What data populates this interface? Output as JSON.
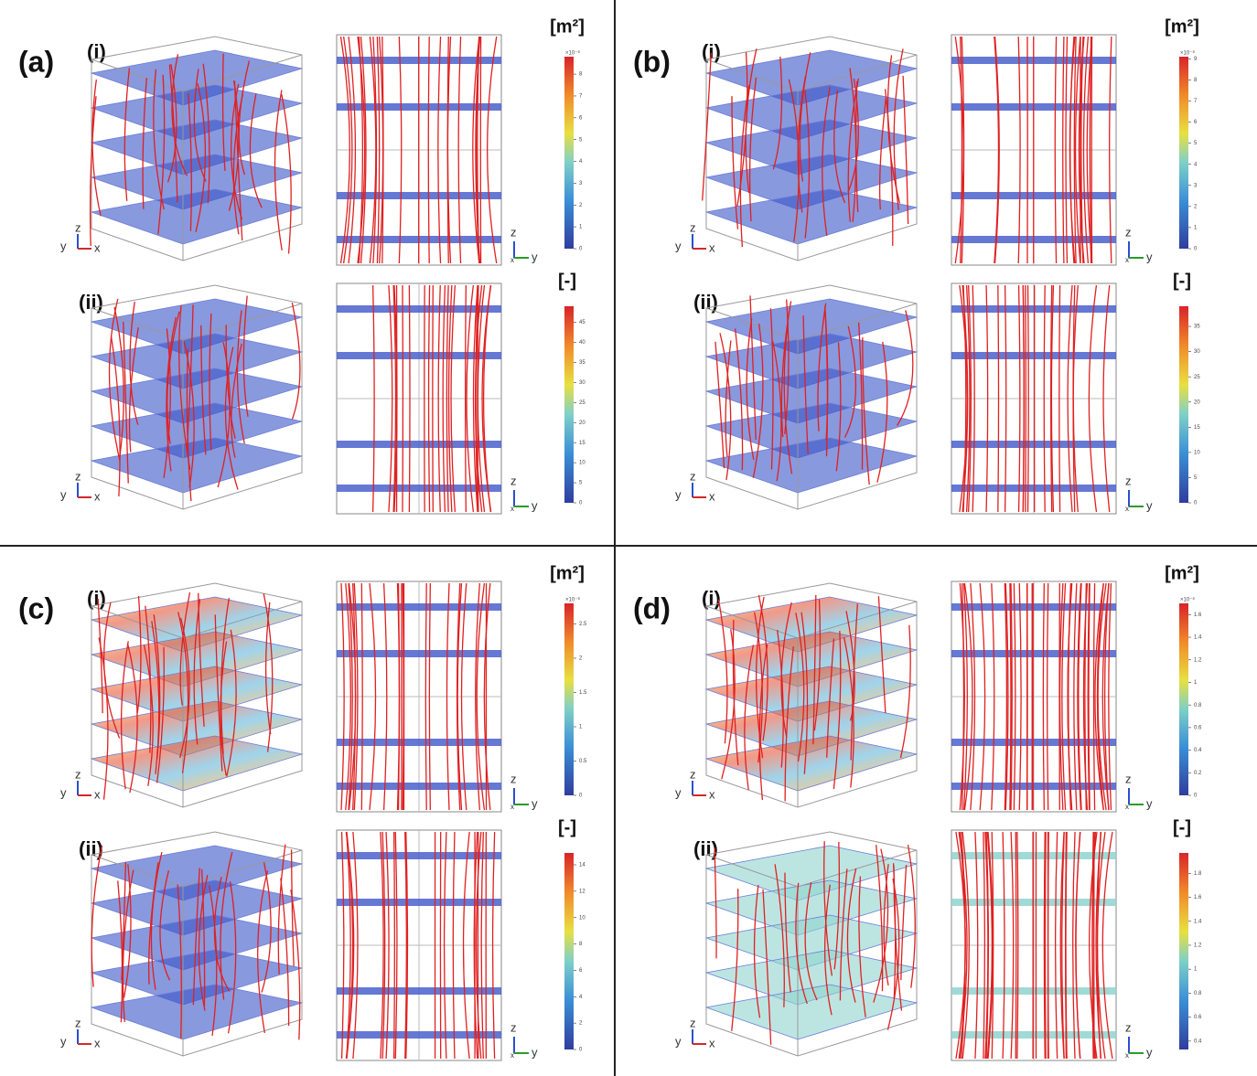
{
  "triad3d": [
    "y",
    "z",
    "x"
  ],
  "triad2d": [
    "z",
    "x",
    "y"
  ],
  "panels": [
    {
      "label": "(a)",
      "rows": [
        {
          "sub": "(i)",
          "unit": "[m²]",
          "exponent": "×10⁻⁸",
          "range": [
            0,
            8.8
          ],
          "ticks": [
            0,
            1,
            2,
            3,
            4,
            5,
            6,
            7,
            8
          ]
        },
        {
          "sub": "(ii)",
          "unit": "[-]",
          "range": [
            0,
            49
          ],
          "ticks": [
            0,
            5,
            10,
            15,
            20,
            25,
            30,
            35,
            40,
            45
          ]
        }
      ]
    },
    {
      "label": "(b)",
      "rows": [
        {
          "sub": "(i)",
          "unit": "[m²]",
          "exponent": "×10⁻⁸",
          "range": [
            0,
            9.1
          ],
          "ticks": [
            0,
            1,
            2,
            3,
            4,
            5,
            6,
            7,
            8,
            9
          ]
        },
        {
          "sub": "(ii)",
          "unit": "[-]",
          "range": [
            0,
            39
          ],
          "ticks": [
            0,
            5,
            10,
            15,
            20,
            25,
            30,
            35
          ]
        }
      ]
    },
    {
      "label": "(c)",
      "rows": [
        {
          "sub": "(i)",
          "unit": "[m²]",
          "exponent": "×10⁻⁸",
          "range": [
            0,
            2.8
          ],
          "ticks": [
            0,
            0.5,
            1,
            1.5,
            2,
            2.5
          ]
        },
        {
          "sub": "(ii)",
          "unit": "[-]",
          "range": [
            0,
            14.9
          ],
          "ticks": [
            0,
            2,
            4,
            6,
            8,
            10,
            12,
            14
          ]
        }
      ]
    },
    {
      "label": "(d)",
      "rows": [
        {
          "sub": "(i)",
          "unit": "[m²]",
          "exponent": "×10⁻⁸",
          "range": [
            0,
            1.7
          ],
          "ticks": [
            0,
            0.2,
            0.4,
            0.6,
            0.8,
            1,
            1.2,
            1.4,
            1.6
          ]
        },
        {
          "sub": "(ii)",
          "unit": "[-]",
          "range": [
            0.33,
            1.97
          ],
          "ticks": [
            0.4,
            0.6,
            0.8,
            1,
            1.2,
            1.4,
            1.6,
            1.8
          ]
        }
      ]
    }
  ]
}
